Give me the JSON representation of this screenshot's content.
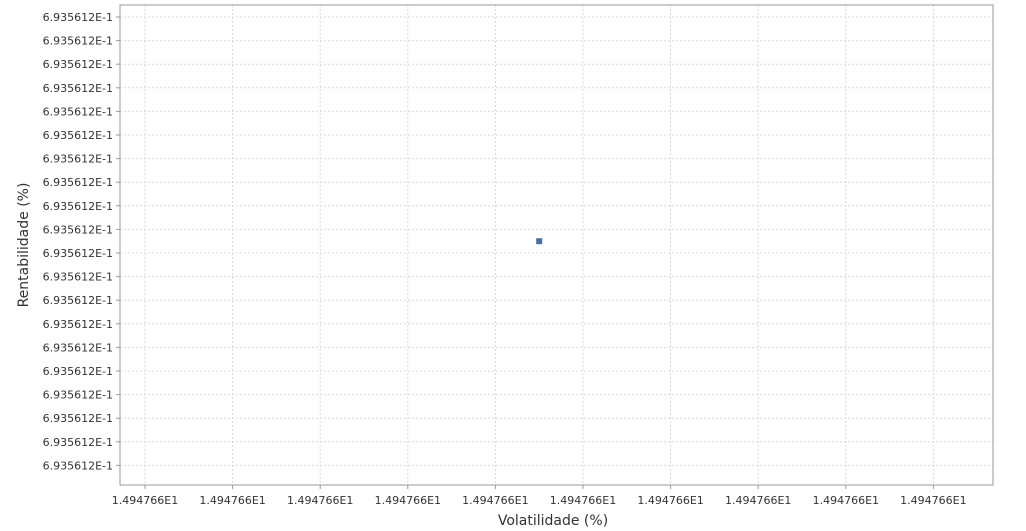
{
  "chart_data": {
    "type": "scatter",
    "title": "",
    "xlabel": "Volatilidade (%)",
    "ylabel": "Rentabilidade (%)",
    "x_tick_labels": [
      "1.494766E1",
      "1.494766E1",
      "1.494766E1",
      "1.494766E1",
      "1.494766E1",
      "1.494766E1",
      "1.494766E1",
      "1.494766E1",
      "1.494766E1",
      "1.494766E1"
    ],
    "y_tick_labels": [
      "6.935612E-1",
      "6.935612E-1",
      "6.935612E-1",
      "6.935612E-1",
      "6.935612E-1",
      "6.935612E-1",
      "6.935612E-1",
      "6.935612E-1",
      "6.935612E-1",
      "6.935612E-1",
      "6.935612E-1",
      "6.935612E-1",
      "6.935612E-1",
      "6.935612E-1",
      "6.935612E-1",
      "6.935612E-1",
      "6.935612E-1",
      "6.935612E-1",
      "6.935612E-1",
      "6.935612E-1"
    ],
    "series": [
      {
        "color": "#4a6fa5",
        "points": [
          {
            "x": 14.94766,
            "y": 0.6935612
          }
        ]
      }
    ],
    "grid": true,
    "legend": "none"
  }
}
